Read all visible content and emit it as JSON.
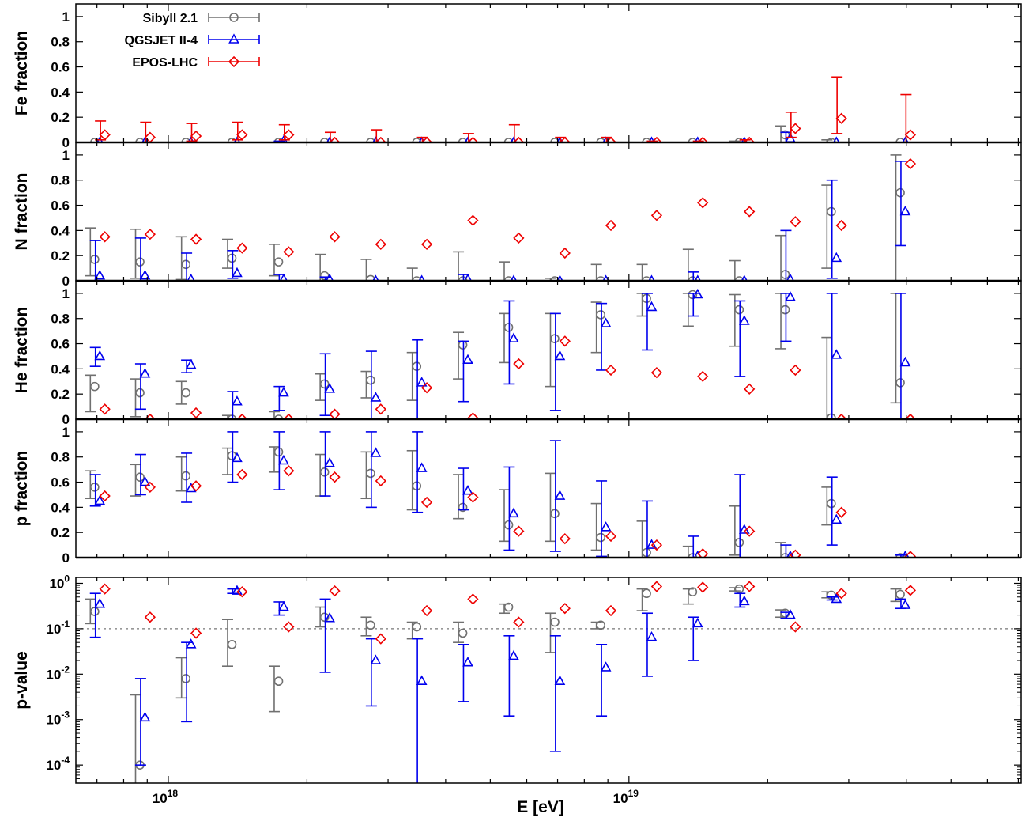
{
  "chart_data": {
    "type": "scatter",
    "xlabel": "E [eV]",
    "x_scale": "log",
    "xlim": [
      6.3e+17,
      7.1e+19
    ],
    "x_ticks": [
      {
        "value": 1e+18,
        "label_base": "10",
        "label_exp": "18"
      },
      {
        "value": 1e+19,
        "label_base": "10",
        "label_exp": "19"
      }
    ],
    "energy_bins": [
      7.1e+17,
      8.9e+17,
      1.12e+18,
      1.41e+18,
      1.78e+18,
      2.24e+18,
      2.82e+18,
      3.55e+18,
      4.47e+18,
      5.62e+18,
      7.08e+18,
      8.91e+18,
      1.12e+19,
      1.41e+19,
      1.78e+19,
      2.24e+19,
      2.82e+19,
      3.98e+19
    ],
    "series": [
      {
        "name": "Sibyll 2.1",
        "color": "#707070",
        "marker": "circle"
      },
      {
        "name": "QGSJET II-4",
        "color": "#0000ee",
        "marker": "triangle"
      },
      {
        "name": "EPOS-LHC",
        "color": "#ee0000",
        "marker": "diamond"
      }
    ],
    "reference_line": {
      "panel": "pvalue",
      "y": 0.1,
      "style": "dashed"
    },
    "panels": [
      {
        "id": "fe",
        "ylabel": "Fe fraction",
        "scale": "linear",
        "ylim": [
          0,
          1.1
        ],
        "yticks": [
          "0",
          "0.2",
          "0.4",
          "0.6",
          "0.8",
          "1"
        ],
        "ytick_values": [
          0,
          0.2,
          0.4,
          0.6,
          0.8,
          1
        ],
        "series": [
          {
            "y": [
              0,
              0,
              0,
              0,
              0,
              0,
              0,
              0,
              0,
              0,
              0,
              0,
              0,
              0,
              0,
              0.06,
              0,
              0
            ],
            "lo": [
              0,
              0,
              0,
              0,
              0,
              0,
              0,
              0,
              0,
              0,
              0,
              0,
              0,
              0,
              0,
              0,
              0,
              0
            ],
            "hi": [
              0,
              0,
              0,
              0,
              0,
              0,
              0,
              0,
              0,
              0,
              0,
              0,
              0,
              0,
              0.01,
              0.13,
              0.02,
              0
            ]
          },
          {
            "y": [
              0,
              0,
              0,
              0,
              0.01,
              0,
              0,
              0,
              0,
              0,
              0,
              0,
              0,
              0,
              0,
              0.03,
              0,
              0
            ],
            "lo": [
              0,
              0,
              0,
              0,
              0,
              0,
              0,
              0,
              0,
              0,
              0,
              0,
              0,
              0,
              0,
              0,
              0,
              0
            ],
            "hi": [
              0,
              0,
              0,
              0,
              0.01,
              0,
              0,
              0,
              0,
              0,
              0,
              0,
              0,
              0,
              0,
              0.08,
              0,
              0
            ]
          },
          {
            "y": [
              0.06,
              0.04,
              0.05,
              0.06,
              0.06,
              0,
              0,
              0,
              0,
              0,
              0,
              0,
              0,
              0,
              0,
              0.11,
              0.19,
              0.06
            ],
            "lo": [
              0.02,
              0,
              0.01,
              0.02,
              0.02,
              0,
              0,
              0,
              0,
              0,
              0,
              0,
              0,
              0,
              0,
              0.04,
              0.07,
              0
            ],
            "hi": [
              0.17,
              0.16,
              0.15,
              0.16,
              0.14,
              0.08,
              0.1,
              0.04,
              0.07,
              0.14,
              0.04,
              0.04,
              0.01,
              0.01,
              0.02,
              0.24,
              0.52,
              0.38
            ]
          }
        ]
      },
      {
        "id": "n",
        "ylabel": "N fraction",
        "scale": "linear",
        "ylim": [
          0,
          1.1
        ],
        "yticks": [
          "0",
          "0.2",
          "0.4",
          "0.6",
          "0.8",
          "1"
        ],
        "ytick_values": [
          0,
          0.2,
          0.4,
          0.6,
          0.8,
          1
        ],
        "series": [
          {
            "y": [
              0.17,
              0.15,
              0.13,
              0.18,
              0.15,
              0.04,
              0.01,
              0,
              0,
              0,
              0,
              0,
              0,
              0,
              0,
              0.05,
              0.55,
              0.7
            ],
            "lo": [
              0.04,
              0.02,
              0.01,
              0.1,
              0.04,
              0,
              0,
              0,
              0,
              0,
              0,
              0,
              0,
              0,
              0,
              0,
              0.1,
              0
            ],
            "hi": [
              0.42,
              0.41,
              0.35,
              0.33,
              0.29,
              0.21,
              0.17,
              0.1,
              0.23,
              0.15,
              0.02,
              0.13,
              0.13,
              0.25,
              0.16,
              0.36,
              0.76,
              1.0
            ]
          },
          {
            "y": [
              0.04,
              0.04,
              0.01,
              0.06,
              0.01,
              0.01,
              0,
              0,
              0.01,
              0,
              0,
              0,
              0,
              0,
              0,
              0.01,
              0.18,
              0.55
            ],
            "lo": [
              0,
              0,
              0,
              0.02,
              0,
              0,
              0,
              0,
              0,
              0,
              0,
              0,
              0,
              0,
              0,
              0,
              0.02,
              0.28
            ],
            "hi": [
              0.32,
              0.34,
              0.22,
              0.24,
              0.05,
              0.03,
              0,
              0,
              0.05,
              0,
              0,
              0,
              0,
              0.07,
              0,
              0.4,
              0.8,
              0.95
            ]
          },
          {
            "y": [
              0.35,
              0.37,
              0.33,
              0.26,
              0.23,
              0.35,
              0.29,
              0.29,
              0.48,
              0.34,
              0.22,
              0.44,
              0.52,
              0.62,
              0.55,
              0.47,
              0.44,
              0.93
            ]
          }
        ]
      },
      {
        "id": "he",
        "ylabel": "He fraction",
        "scale": "linear",
        "ylim": [
          0,
          1.1
        ],
        "yticks": [
          "0",
          "0.2",
          "0.4",
          "0.6",
          "0.8",
          "1"
        ],
        "ytick_values": [
          0,
          0.2,
          0.4,
          0.6,
          0.8,
          1
        ],
        "series": [
          {
            "y": [
              0.26,
              0.21,
              0.21,
              0,
              0,
              0.28,
              0.31,
              0.42,
              0.59,
              0.73,
              0.64,
              0.83,
              0.96,
              0.99,
              0.87,
              0.87,
              0.01,
              0.29
            ],
            "lo": [
              0.06,
              0.02,
              0.12,
              0,
              0,
              0.15,
              0.17,
              0.15,
              0.32,
              0.45,
              0.26,
              0.53,
              0.82,
              0.74,
              0.58,
              0.56,
              0,
              0.13
            ],
            "hi": [
              0.35,
              0.32,
              0.3,
              0.03,
              0.06,
              0.36,
              0.38,
              0.53,
              0.69,
              0.84,
              0.84,
              0.93,
              1.0,
              1.0,
              0.99,
              1.0,
              0.65,
              1.0
            ]
          },
          {
            "y": [
              0.5,
              0.36,
              0.43,
              0.14,
              0.21,
              0.24,
              0.17,
              0.29,
              0.47,
              0.64,
              0.5,
              0.76,
              0.89,
              0.99,
              0.78,
              0.97,
              0.51,
              0.45
            ],
            "lo": [
              0.42,
              0.08,
              0.37,
              0,
              0.07,
              0.03,
              0,
              0,
              0.14,
              0.28,
              0.07,
              0.39,
              0.55,
              0.82,
              0.34,
              0.62,
              0,
              0
            ],
            "hi": [
              0.57,
              0.44,
              0.47,
              0.22,
              0.26,
              0.52,
              0.54,
              0.63,
              0.62,
              0.94,
              0.84,
              0.92,
              1.0,
              1.0,
              0.94,
              1.0,
              1.0,
              1.0
            ]
          },
          {
            "y": [
              0.08,
              0,
              0.05,
              0,
              0,
              0.04,
              0.08,
              0.25,
              0.01,
              0.44,
              0.62,
              0.39,
              0.37,
              0.34,
              0.24,
              0.39,
              0,
              0
            ]
          }
        ]
      },
      {
        "id": "p",
        "ylabel": "p fraction",
        "scale": "linear",
        "ylim": [
          0,
          1.1
        ],
        "yticks": [
          "0",
          "0.2",
          "0.4",
          "0.6",
          "0.8",
          "1"
        ],
        "ytick_values": [
          0,
          0.2,
          0.4,
          0.6,
          0.8,
          1
        ],
        "series": [
          {
            "y": [
              0.56,
              0.64,
              0.65,
              0.81,
              0.84,
              0.68,
              0.67,
              0.57,
              0.4,
              0.26,
              0.35,
              0.16,
              0.04,
              0,
              0.12,
              0,
              0.43,
              0
            ],
            "lo": [
              0.47,
              0.49,
              0.53,
              0.66,
              0.68,
              0.49,
              0.47,
              0.38,
              0.31,
              0.13,
              0.13,
              0.06,
              0,
              0,
              0.02,
              0,
              0.26,
              0
            ],
            "hi": [
              0.69,
              0.74,
              0.8,
              0.87,
              0.88,
              0.82,
              0.84,
              0.85,
              0.66,
              0.54,
              0.67,
              0.43,
              0.29,
              0.09,
              0.41,
              0.12,
              0.56,
              0
            ]
          },
          {
            "y": [
              0.45,
              0.6,
              0.55,
              0.79,
              0.77,
              0.75,
              0.83,
              0.71,
              0.53,
              0.35,
              0.49,
              0.24,
              0.1,
              0.01,
              0.22,
              0.01,
              0.3,
              0.01
            ],
            "lo": [
              0.41,
              0.5,
              0.44,
              0.6,
              0.54,
              0.49,
              0.4,
              0.36,
              0.38,
              0.06,
              0.05,
              0.01,
              0,
              0,
              0,
              0,
              0.1,
              0
            ],
            "hi": [
              0.66,
              0.82,
              0.83,
              1.0,
              1.0,
              1.0,
              1.0,
              1.0,
              0.71,
              0.72,
              0.93,
              0.61,
              0.45,
              0.17,
              0.66,
              0.1,
              0.64,
              0.02
            ]
          },
          {
            "y": [
              0.49,
              0.56,
              0.57,
              0.66,
              0.69,
              0.64,
              0.61,
              0.44,
              0.48,
              0.21,
              0.15,
              0.17,
              0.1,
              0.03,
              0.21,
              0.02,
              0.36,
              0.01
            ]
          }
        ]
      },
      {
        "id": "pvalue",
        "ylabel": "p-value",
        "scale": "log",
        "ylim": [
          4e-05,
          1.35
        ],
        "yticks": [
          {
            "base": "10",
            "exp": "-4"
          },
          {
            "base": "10",
            "exp": "-3"
          },
          {
            "base": "10",
            "exp": "-2"
          },
          {
            "base": "10",
            "exp": "-1"
          },
          {
            "base": "10",
            "exp": "0"
          }
        ],
        "ytick_values": [
          0.0001,
          0.001,
          0.01,
          0.1,
          1
        ],
        "series": [
          {
            "y": [
              0.24,
              0.0001,
              0.008,
              0.045,
              0.007,
              0.18,
              0.12,
              0.11,
              0.08,
              0.3,
              0.14,
              0.12,
              0.6,
              0.65,
              0.75,
              0.22,
              0.55,
              0.57
            ],
            "lo": [
              0.13,
              3e-05,
              0.003,
              0.015,
              0.0015,
              0.11,
              0.07,
              0.06,
              0.05,
              0.22,
              0.03,
              0.1,
              0.25,
              0.35,
              0.68,
              0.18,
              0.48,
              0.4
            ],
            "hi": [
              0.45,
              0.0035,
              0.023,
              0.16,
              0.015,
              0.3,
              0.18,
              0.14,
              0.14,
              0.35,
              0.22,
              0.14,
              0.75,
              0.75,
              0.8,
              0.26,
              0.65,
              0.75
            ]
          },
          {
            "y": [
              0.35,
              0.0011,
              0.045,
              0.68,
              0.3,
              0.17,
              0.02,
              0.007,
              0.018,
              0.025,
              0.007,
              0.014,
              0.065,
              0.13,
              0.4,
              0.2,
              0.45,
              0.33
            ],
            "lo": [
              0.065,
              0.0001,
              0.0009,
              0.6,
              0.2,
              0.011,
              0.002,
              3e-05,
              0.0025,
              0.0012,
              0.0002,
              0.0012,
              0.009,
              0.02,
              0.3,
              0.17,
              0.43,
              0.28
            ],
            "hi": [
              0.6,
              0.008,
              0.05,
              0.75,
              0.39,
              0.45,
              0.06,
              0.06,
              0.045,
              0.07,
              0.07,
              0.045,
              0.22,
              0.18,
              0.6,
              0.23,
              0.5,
              0.45
            ]
          },
          {
            "y": [
              0.75,
              0.18,
              0.08,
              0.65,
              0.11,
              0.68,
              0.06,
              0.25,
              0.45,
              0.14,
              0.28,
              0.25,
              0.85,
              0.82,
              0.85,
              0.11,
              0.6,
              0.7
            ]
          }
        ]
      }
    ]
  }
}
